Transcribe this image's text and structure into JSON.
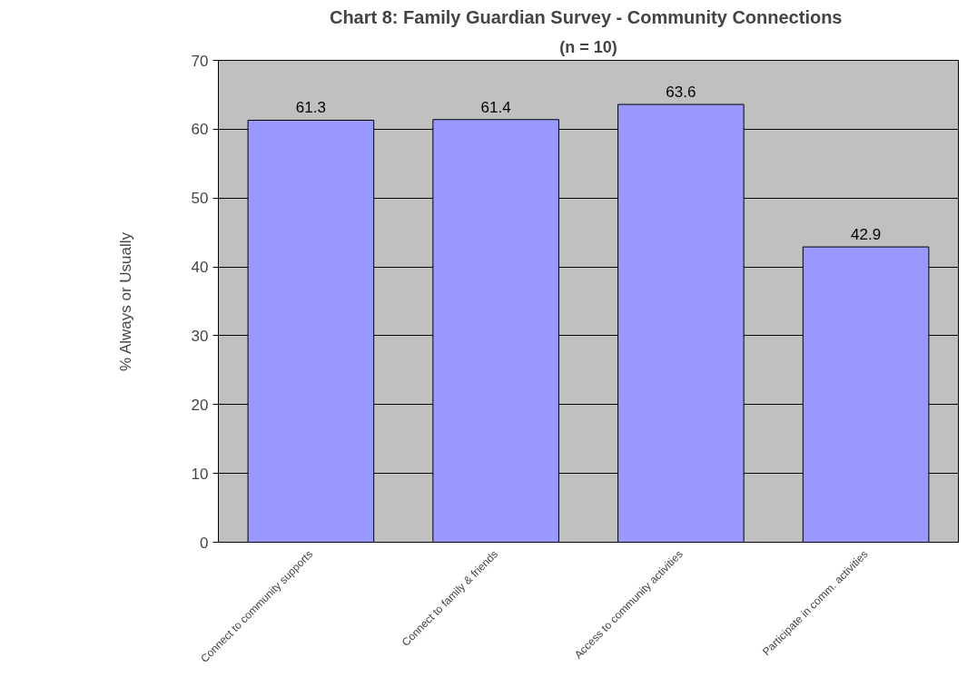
{
  "chart_data": {
    "type": "bar",
    "title": "Chart 8:  Family Guardian Survey - Community Connections",
    "subtitle": "(n = 10)",
    "ylabel": "% Always or Usually",
    "categories": [
      "Connect to community supports",
      "Connect to family & friends",
      "Access to community activities",
      "Participate in comm. activities"
    ],
    "values": [
      61.3,
      61.4,
      63.6,
      42.9
    ],
    "color": "#9999ff",
    "ylim": [
      0,
      70
    ],
    "yticks": [
      0,
      10,
      20,
      30,
      40,
      50,
      60,
      70
    ],
    "grid": "y",
    "data_labels": true
  }
}
